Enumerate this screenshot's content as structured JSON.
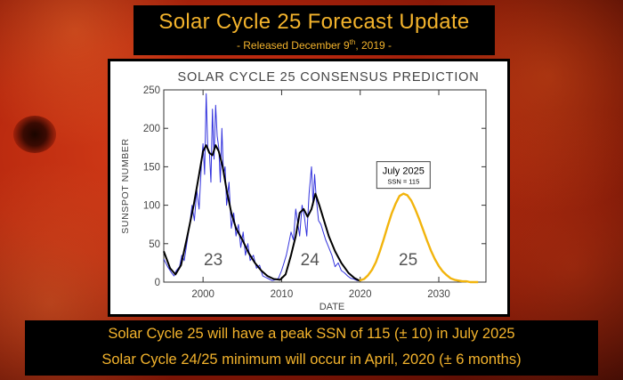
{
  "header": {
    "title": "Solar Cycle 25 Forecast Update",
    "subtitle_pre": "- Released December 9",
    "subtitle_sup": "th",
    "subtitle_post": ", 2019 -"
  },
  "footer": {
    "line1": "Solar Cycle 25 will have a peak SSN of 115 (± 10) in July 2025",
    "line2": "Solar Cycle 24/25 minimum will occur in April, 2020 (± 6 months)"
  },
  "chart_data": {
    "type": "line",
    "title": "SOLAR CYCLE 25 CONSENSUS PREDICTION",
    "xlabel": "DATE",
    "ylabel": "SUNSPOT NUMBER",
    "xlim": [
      1995,
      2036
    ],
    "ylim": [
      0,
      250
    ],
    "xticks": [
      2000,
      2010,
      2020,
      2030
    ],
    "yticks": [
      0,
      50,
      100,
      150,
      200,
      250
    ],
    "grid": false,
    "cycle_labels": [
      {
        "text": "23",
        "x": 2001.3,
        "y": 22
      },
      {
        "text": "24",
        "x": 2013.6,
        "y": 22
      },
      {
        "text": "25",
        "x": 2026.1,
        "y": 22
      }
    ],
    "annotation": {
      "title": "July 2025",
      "detail": "SSN = 115",
      "x": 2025.5,
      "y": 115
    },
    "colors": {
      "monthly": "#3333dd",
      "smoothed": "#000000",
      "prediction": "#f2b40c"
    },
    "series": [
      {
        "role": "monthly",
        "x": [
          1995,
          1995.5,
          1996,
          1996.3,
          1996.6,
          1997,
          1997.3,
          1997.6,
          1998,
          1998.3,
          1998.6,
          1998.9,
          1999.2,
          1999.5,
          1999.8,
          2000.0,
          2000.2,
          2000.4,
          2000.6,
          2000.8,
          2001.0,
          2001.2,
          2001.4,
          2001.6,
          2001.8,
          2002.0,
          2002.2,
          2002.4,
          2002.6,
          2002.8,
          2003.0,
          2003.3,
          2003.6,
          2003.9,
          2004.2,
          2004.5,
          2004.8,
          2005.1,
          2005.4,
          2005.7,
          2006,
          2006.4,
          2006.8,
          2007.2,
          2007.6,
          2008,
          2008.4,
          2008.8,
          2009.2,
          2009.6,
          2010,
          2010.3,
          2010.6,
          2010.9,
          2011.2,
          2011.5,
          2011.8,
          2012.0,
          2012.3,
          2012.6,
          2012.9,
          2013.2,
          2013.5,
          2013.8,
          2014.0,
          2014.2,
          2014.4,
          2014.7,
          2015.0,
          2015.3,
          2015.6,
          2016,
          2016.4,
          2016.8,
          2017.2,
          2017.6,
          2018,
          2018.4,
          2018.8,
          2019.2,
          2019.6,
          2019.9
        ],
        "y": [
          30,
          20,
          12,
          8,
          15,
          20,
          35,
          28,
          55,
          75,
          100,
          80,
          120,
          95,
          155,
          180,
          140,
          245,
          175,
          170,
          130,
          225,
          160,
          230,
          190,
          175,
          130,
          200,
          140,
          150,
          100,
          130,
          70,
          90,
          60,
          75,
          45,
          65,
          35,
          50,
          28,
          35,
          18,
          22,
          8,
          6,
          4,
          2,
          3,
          5,
          15,
          25,
          35,
          50,
          65,
          55,
          95,
          80,
          60,
          100,
          85,
          60,
          115,
          150,
          100,
          140,
          110,
          80,
          75,
          65,
          55,
          45,
          35,
          20,
          25,
          15,
          12,
          8,
          5,
          4,
          2,
          2
        ]
      },
      {
        "role": "smoothed",
        "x": [
          1995,
          1995.8,
          1996.5,
          1997.2,
          1998,
          1998.8,
          1999.5,
          2000.0,
          2000.4,
          2000.8,
          2001.2,
          2001.6,
          2002.0,
          2002.5,
          2003.0,
          2003.6,
          2004.2,
          2005,
          2005.8,
          2006.6,
          2007.4,
          2008.2,
          2009.0,
          2009.8,
          2010.5,
          2011.2,
          2011.8,
          2012.3,
          2012.8,
          2013.3,
          2013.8,
          2014.3,
          2014.8,
          2015.4,
          2016.0,
          2016.8,
          2017.6,
          2018.5,
          2019.3,
          2019.9
        ],
        "y": [
          40,
          18,
          10,
          22,
          60,
          100,
          140,
          170,
          178,
          168,
          165,
          178,
          170,
          150,
          120,
          90,
          70,
          55,
          38,
          25,
          15,
          8,
          4,
          3,
          10,
          35,
          60,
          90,
          95,
          85,
          95,
          115,
          100,
          80,
          60,
          40,
          25,
          12,
          5,
          2
        ]
      },
      {
        "role": "prediction",
        "x": [
          2019.9,
          2020.5,
          2021,
          2021.5,
          2022,
          2022.5,
          2023,
          2023.5,
          2024,
          2024.5,
          2025,
          2025.5,
          2026,
          2026.5,
          2027,
          2027.5,
          2028,
          2028.5,
          2029,
          2029.5,
          2030,
          2030.5,
          2031,
          2031.5,
          2032,
          2032.5,
          2033,
          2033.5,
          2034,
          2034.5,
          2035
        ],
        "y": [
          2,
          4,
          9,
          16,
          26,
          40,
          56,
          73,
          89,
          102,
          112,
          115,
          113,
          106,
          95,
          82,
          68,
          54,
          41,
          30,
          21,
          14,
          9,
          5,
          3,
          2,
          1,
          1,
          0,
          0,
          0
        ]
      }
    ]
  }
}
